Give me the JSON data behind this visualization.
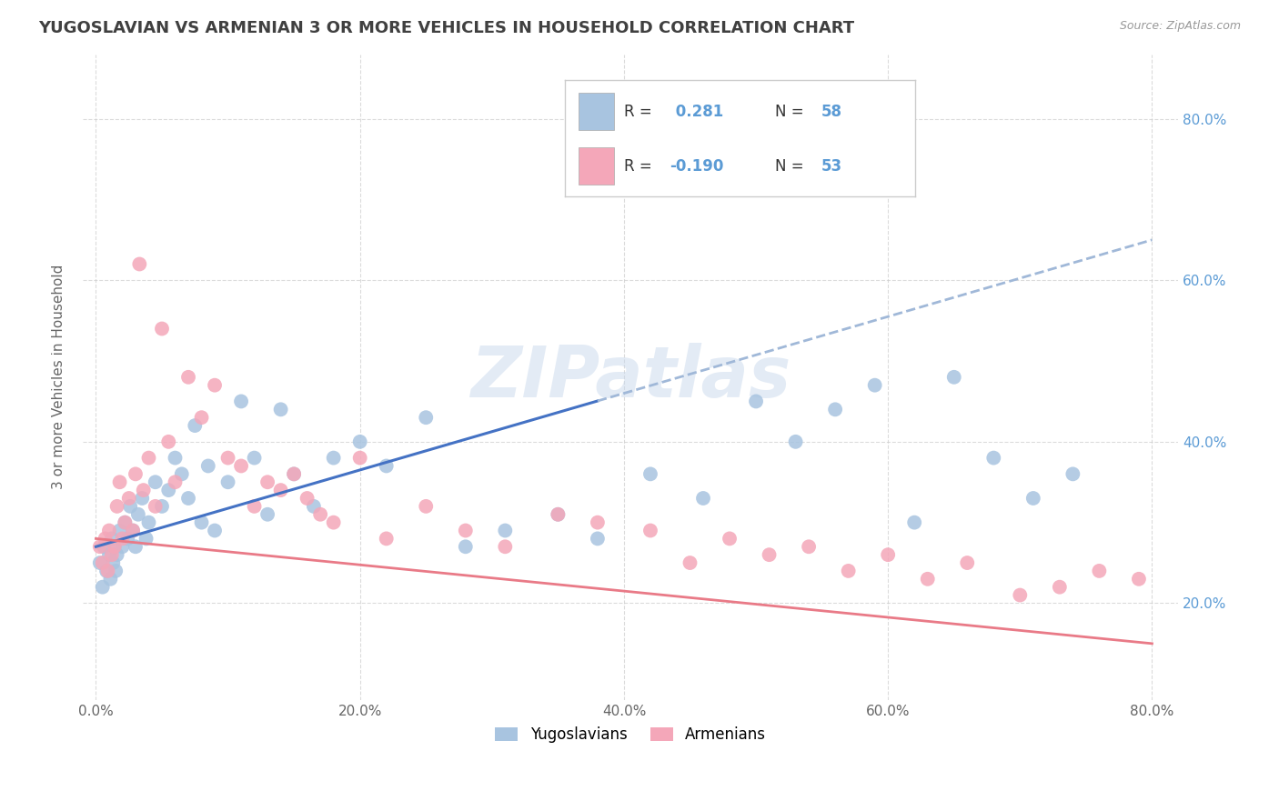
{
  "title": "YUGOSLAVIAN VS ARMENIAN 3 OR MORE VEHICLES IN HOUSEHOLD CORRELATION CHART",
  "source_text": "Source: ZipAtlas.com",
  "ylabel": "3 or more Vehicles in Household",
  "x_tick_labels": [
    "0.0%",
    "20.0%",
    "40.0%",
    "60.0%",
    "80.0%"
  ],
  "x_tick_vals": [
    0,
    20,
    40,
    60,
    80
  ],
  "y_tick_labels": [
    "20.0%",
    "40.0%",
    "60.0%",
    "80.0%"
  ],
  "y_tick_vals": [
    20,
    40,
    60,
    80
  ],
  "xlim": [
    -1,
    82
  ],
  "ylim": [
    8,
    88
  ],
  "legend_labels": [
    "Yugoslavians",
    "Armenians"
  ],
  "R_yug": 0.281,
  "N_yug": 58,
  "R_arm": -0.19,
  "N_arm": 53,
  "color_yug": "#a8c4e0",
  "color_arm": "#f4a7b9",
  "color_yug_line": "#4472c4",
  "color_arm_line": "#e97a87",
  "color_yug_dash": "#a0b8d8",
  "watermark": "ZIPatlas",
  "background_color": "#ffffff",
  "grid_color": "#cccccc",
  "title_color": "#404040",
  "yug_x": [
    0.3,
    0.5,
    0.6,
    0.8,
    1.0,
    1.1,
    1.2,
    1.3,
    1.4,
    1.5,
    1.6,
    1.8,
    2.0,
    2.2,
    2.4,
    2.6,
    2.8,
    3.0,
    3.2,
    3.5,
    3.8,
    4.0,
    4.5,
    5.0,
    5.5,
    6.0,
    6.5,
    7.0,
    7.5,
    8.0,
    8.5,
    9.0,
    10.0,
    11.0,
    12.0,
    13.0,
    14.0,
    15.0,
    16.5,
    18.0,
    20.0,
    22.0,
    25.0,
    28.0,
    31.0,
    35.0,
    38.0,
    42.0,
    46.0,
    50.0,
    53.0,
    56.0,
    59.0,
    62.0,
    65.0,
    68.0,
    71.0,
    74.0
  ],
  "yug_y": [
    25,
    22,
    27,
    24,
    26,
    23,
    28,
    25,
    27,
    24,
    26,
    29,
    27,
    30,
    28,
    32,
    29,
    27,
    31,
    33,
    28,
    30,
    35,
    32,
    34,
    38,
    36,
    33,
    42,
    30,
    37,
    29,
    35,
    45,
    38,
    31,
    44,
    36,
    32,
    38,
    40,
    37,
    43,
    27,
    29,
    31,
    28,
    36,
    33,
    45,
    40,
    44,
    47,
    30,
    48,
    38,
    33,
    36
  ],
  "arm_x": [
    0.3,
    0.5,
    0.7,
    0.9,
    1.0,
    1.2,
    1.4,
    1.6,
    1.8,
    2.0,
    2.2,
    2.5,
    2.8,
    3.0,
    3.3,
    3.6,
    4.0,
    4.5,
    5.0,
    5.5,
    6.0,
    7.0,
    8.0,
    9.0,
    10.0,
    11.0,
    12.0,
    13.0,
    14.0,
    15.0,
    16.0,
    17.0,
    18.0,
    20.0,
    22.0,
    25.0,
    28.0,
    31.0,
    35.0,
    38.0,
    42.0,
    45.0,
    48.0,
    51.0,
    54.0,
    57.0,
    60.0,
    63.0,
    66.0,
    70.0,
    73.0,
    76.0,
    79.0
  ],
  "arm_y": [
    27,
    25,
    28,
    24,
    29,
    26,
    27,
    32,
    35,
    28,
    30,
    33,
    29,
    36,
    62,
    34,
    38,
    32,
    54,
    40,
    35,
    48,
    43,
    47,
    38,
    37,
    32,
    35,
    34,
    36,
    33,
    31,
    30,
    38,
    28,
    32,
    29,
    27,
    31,
    30,
    29,
    25,
    28,
    26,
    27,
    24,
    26,
    23,
    25,
    21,
    22,
    24,
    23
  ],
  "yug_line_x0": 0,
  "yug_line_y0": 27,
  "yug_line_x1": 80,
  "yug_line_y1": 65,
  "arm_line_x0": 0,
  "arm_line_y0": 28,
  "arm_line_x1": 80,
  "arm_line_y1": 15
}
